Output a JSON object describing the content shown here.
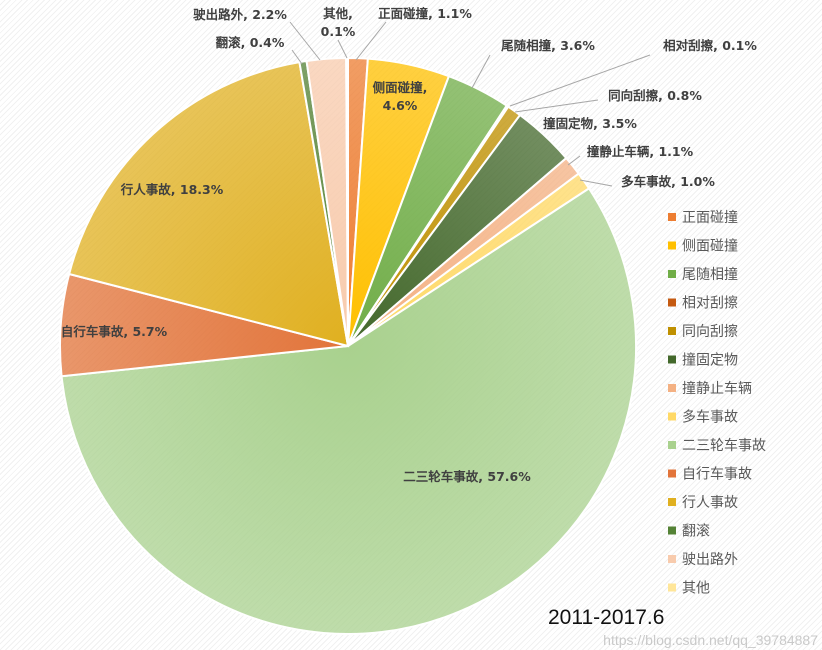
{
  "chart_data": {
    "type": "pie",
    "subtitle": "2011-2017.6",
    "start_angle": "12 o'clock, clockwise",
    "legend_position": "right",
    "slices": [
      {
        "label": "正面碰撞",
        "value": 1.1,
        "display": "1.1%",
        "color": "#ED7D31"
      },
      {
        "label": "侧面碰撞",
        "value": 4.6,
        "display": "4.6%",
        "color": "#FFC000"
      },
      {
        "label": "尾随相撞",
        "value": 3.6,
        "display": "3.6%",
        "color": "#70AD47"
      },
      {
        "label": "相对刮擦",
        "value": 0.1,
        "display": "0.1%",
        "color": "#C55A11"
      },
      {
        "label": "同向刮擦",
        "value": 0.8,
        "display": "0.8%",
        "color": "#BF9000"
      },
      {
        "label": "撞固定物",
        "value": 3.5,
        "display": "3.5%",
        "color": "#43682B"
      },
      {
        "label": "撞静止车辆",
        "value": 1.1,
        "display": "1.1%",
        "color": "#F4B183"
      },
      {
        "label": "多车事故",
        "value": 1.0,
        "display": "1.0%",
        "color": "#FFD966"
      },
      {
        "label": "二三轮车事故",
        "value": 57.6,
        "display": "57.6%",
        "color": "#A9D18E"
      },
      {
        "label": "自行车事故",
        "value": 5.7,
        "display": "5.7%",
        "color": "#E2743A"
      },
      {
        "label": "行人事故",
        "value": 18.3,
        "display": "18.3%",
        "color": "#E0B020"
      },
      {
        "label": "翻滚",
        "value": 0.4,
        "display": "0.4%",
        "color": "#548235"
      },
      {
        "label": "驶出路外",
        "value": 2.2,
        "display": "2.2%",
        "color": "#F8CBAD"
      },
      {
        "label": "其他",
        "value": 0.1,
        "display": "0.1%",
        "color": "#FFE699"
      }
    ]
  },
  "watermark": "https://blog.csdn.net/qq_39784887"
}
